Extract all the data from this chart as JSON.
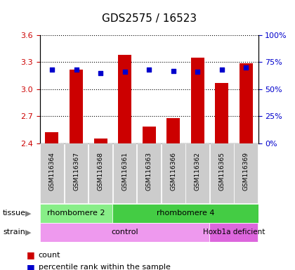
{
  "title": "GDS2575 / 16523",
  "samples": [
    "GSM116364",
    "GSM116367",
    "GSM116368",
    "GSM116361",
    "GSM116363",
    "GSM116366",
    "GSM116362",
    "GSM116365",
    "GSM116369"
  ],
  "counts": [
    2.52,
    3.22,
    2.45,
    3.38,
    2.58,
    2.68,
    3.35,
    3.07,
    3.29
  ],
  "percentiles": [
    68,
    68,
    65,
    66,
    68,
    67,
    66,
    68,
    70
  ],
  "ylim_left": [
    2.4,
    3.6
  ],
  "ylim_right": [
    0,
    100
  ],
  "yticks_left": [
    2.4,
    2.7,
    3.0,
    3.3,
    3.6
  ],
  "yticks_right": [
    0,
    25,
    50,
    75,
    100
  ],
  "ytick_labels_right": [
    "0%",
    "25%",
    "50%",
    "75%",
    "100%"
  ],
  "bar_color": "#cc0000",
  "dot_color": "#0000cc",
  "tissue_rh2_color": "#88ee88",
  "tissue_rh4_color": "#44cc44",
  "strain_control_color": "#ee99ee",
  "strain_hoxb1a_color": "#dd66dd",
  "tick_label_color_left": "#cc0000",
  "tick_label_color_right": "#0000cc",
  "xtick_bg_color": "#cccccc",
  "legend_items": [
    {
      "label": "count",
      "color": "#cc0000"
    },
    {
      "label": "percentile rank within the sample",
      "color": "#0000cc"
    }
  ]
}
